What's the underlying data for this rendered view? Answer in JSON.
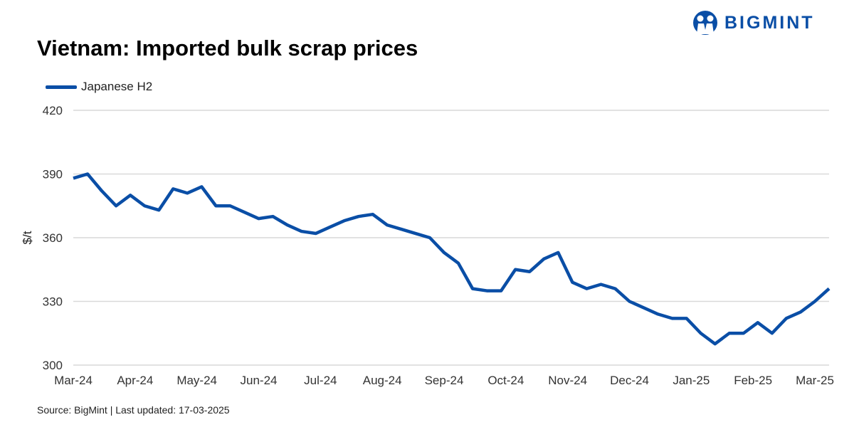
{
  "header": {
    "title": "Vietnam: Imported bulk scrap prices",
    "logo_text": "BIGMINT"
  },
  "footer": {
    "source": "Source: BigMint | Last updated: 17-03-2025"
  },
  "colors": {
    "series": "#0a4ea6",
    "grid": "#d9d9d9"
  },
  "chart_data": {
    "type": "line",
    "title": "Vietnam: Imported bulk scrap prices",
    "xlabel": "",
    "ylabel": "$/t",
    "ylim": [
      300,
      420
    ],
    "yticks": [
      300,
      330,
      360,
      390,
      420
    ],
    "xtick_labels": [
      "Mar-24",
      "Apr-24",
      "May-24",
      "Jun-24",
      "Jul-24",
      "Aug-24",
      "Sep-24",
      "Oct-24",
      "Nov-24",
      "Dec-24",
      "Jan-25",
      "Feb-25",
      "Mar-25"
    ],
    "grid": true,
    "legend_position": "top-left",
    "series": [
      {
        "name": "Japanese H2",
        "values": [
          388,
          390,
          382,
          375,
          380,
          375,
          373,
          383,
          381,
          384,
          375,
          375,
          372,
          369,
          370,
          366,
          363,
          362,
          365,
          368,
          370,
          371,
          366,
          364,
          362,
          360,
          353,
          348,
          336,
          335,
          335,
          345,
          344,
          350,
          353,
          339,
          336,
          338,
          336,
          330,
          327,
          324,
          322,
          322,
          315,
          310,
          315,
          315,
          320,
          315,
          322,
          325,
          330,
          336
        ]
      }
    ]
  }
}
